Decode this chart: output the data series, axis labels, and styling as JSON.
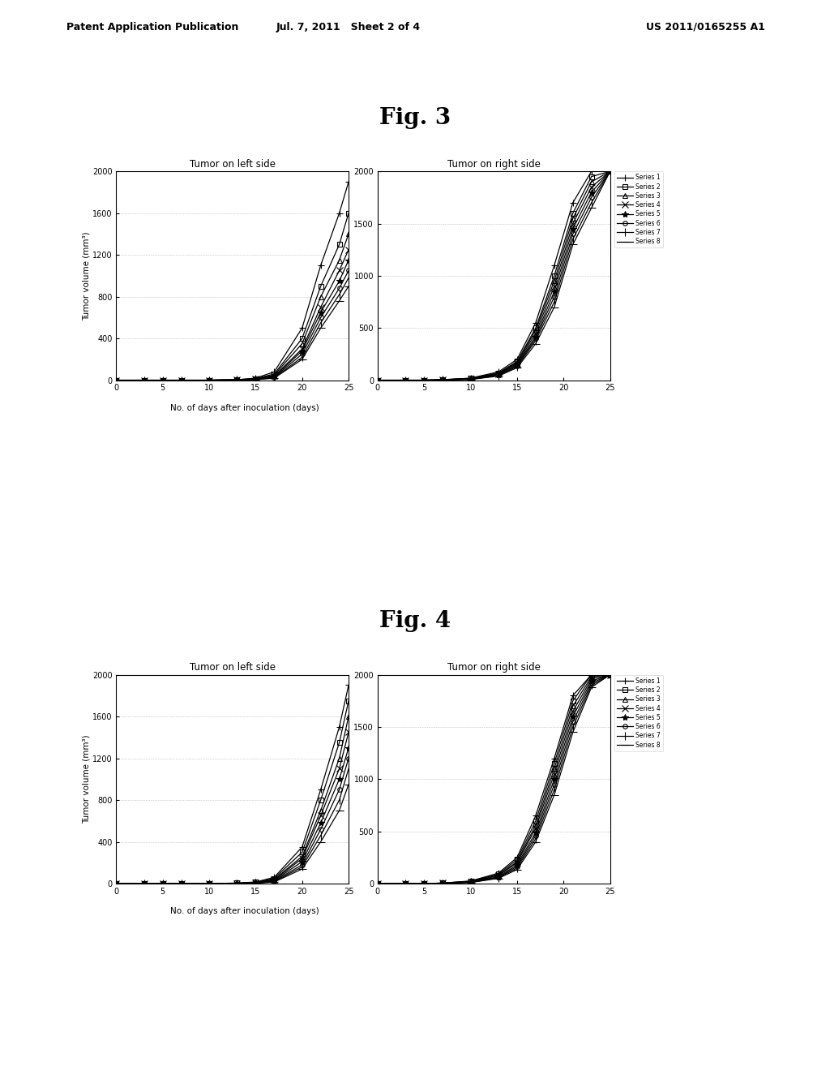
{
  "fig3_title": "Fig. 3",
  "fig4_title": "Fig. 4",
  "left_title": "Tumor on left side",
  "right_title": "Tumor on right side",
  "xlabel": "No. of days after inoculation (days)",
  "ylabel": "Tumor volume (mm³)",
  "xlim": [
    0,
    25
  ],
  "ylim_left": [
    0,
    2000
  ],
  "ylim_right": [
    0,
    2000
  ],
  "yticks_left": [
    0,
    400,
    800,
    1200,
    1600,
    2000
  ],
  "yticks_right": [
    0,
    500,
    1000,
    1500,
    2000
  ],
  "xticks": [
    0,
    5,
    10,
    15,
    20,
    25
  ],
  "series_labels": [
    "Series 1",
    "Series 2",
    "Series 3",
    "Series 4",
    "Series 5",
    "Series 6",
    "Series 7",
    "Series 8"
  ],
  "header_text_left": "Patent Application Publication",
  "header_text_mid": "Jul. 7, 2011   Sheet 2 of 4",
  "header_text_right": "US 2011/0165255 A1",
  "fig3": {
    "left": {
      "days": [
        0,
        3,
        5,
        7,
        10,
        13,
        15,
        17,
        20,
        22,
        24,
        25
      ],
      "series": [
        [
          0,
          0,
          0,
          0,
          0,
          5,
          20,
          80,
          500,
          1100,
          1600,
          1900
        ],
        [
          0,
          0,
          0,
          0,
          0,
          5,
          15,
          60,
          400,
          900,
          1300,
          1600
        ],
        [
          0,
          0,
          0,
          0,
          0,
          4,
          12,
          50,
          350,
          800,
          1150,
          1400
        ],
        [
          0,
          0,
          0,
          0,
          0,
          3,
          10,
          40,
          300,
          700,
          1050,
          1250
        ],
        [
          0,
          0,
          0,
          0,
          0,
          3,
          8,
          35,
          280,
          650,
          950,
          1150
        ],
        [
          0,
          0,
          0,
          0,
          0,
          2,
          7,
          30,
          250,
          600,
          880,
          1050
        ],
        [
          0,
          0,
          0,
          0,
          0,
          2,
          5,
          25,
          220,
          550,
          820,
          980
        ],
        [
          0,
          0,
          0,
          0,
          0,
          2,
          4,
          20,
          200,
          500,
          760,
          900
        ]
      ]
    },
    "right": {
      "days": [
        0,
        3,
        5,
        7,
        10,
        13,
        15,
        17,
        19,
        21,
        23,
        25
      ],
      "series": [
        [
          0,
          0,
          0,
          5,
          20,
          80,
          200,
          550,
          1100,
          1700,
          2000,
          2000
        ],
        [
          0,
          0,
          0,
          5,
          18,
          70,
          180,
          500,
          1000,
          1600,
          1950,
          2000
        ],
        [
          0,
          0,
          0,
          4,
          16,
          65,
          170,
          480,
          950,
          1550,
          1900,
          2000
        ],
        [
          0,
          0,
          0,
          4,
          15,
          60,
          160,
          450,
          900,
          1500,
          1850,
          2000
        ],
        [
          0,
          0,
          0,
          3,
          12,
          55,
          150,
          420,
          850,
          1450,
          1800,
          2000
        ],
        [
          0,
          0,
          0,
          3,
          10,
          50,
          140,
          400,
          800,
          1400,
          1750,
          2000
        ],
        [
          0,
          0,
          0,
          2,
          8,
          45,
          130,
          380,
          750,
          1350,
          1700,
          2000
        ],
        [
          0,
          0,
          0,
          2,
          7,
          40,
          120,
          350,
          700,
          1300,
          1650,
          2000
        ]
      ]
    }
  },
  "fig4": {
    "left": {
      "days": [
        0,
        3,
        5,
        7,
        10,
        13,
        15,
        17,
        20,
        22,
        24,
        25
      ],
      "series": [
        [
          0,
          0,
          0,
          0,
          0,
          5,
          15,
          60,
          350,
          900,
          1500,
          1900
        ],
        [
          0,
          0,
          0,
          0,
          0,
          4,
          12,
          50,
          300,
          800,
          1350,
          1750
        ],
        [
          0,
          0,
          0,
          0,
          0,
          3,
          10,
          40,
          260,
          700,
          1200,
          1600
        ],
        [
          0,
          0,
          0,
          0,
          0,
          3,
          8,
          35,
          240,
          650,
          1100,
          1450
        ],
        [
          0,
          0,
          0,
          0,
          0,
          2,
          7,
          30,
          210,
          580,
          1000,
          1300
        ],
        [
          0,
          0,
          0,
          0,
          0,
          2,
          5,
          25,
          180,
          520,
          900,
          1200
        ],
        [
          0,
          0,
          0,
          0,
          0,
          2,
          4,
          20,
          160,
          460,
          800,
          1100
        ],
        [
          0,
          0,
          0,
          0,
          0,
          1,
          3,
          15,
          140,
          400,
          700,
          950
        ]
      ]
    },
    "right": {
      "days": [
        0,
        3,
        5,
        7,
        10,
        13,
        15,
        17,
        19,
        21,
        23,
        25
      ],
      "series": [
        [
          0,
          0,
          0,
          5,
          25,
          100,
          250,
          650,
          1200,
          1800,
          2000,
          2000
        ],
        [
          0,
          0,
          0,
          5,
          22,
          90,
          230,
          600,
          1150,
          1750,
          2000,
          2000
        ],
        [
          0,
          0,
          0,
          4,
          20,
          80,
          210,
          560,
          1100,
          1700,
          1980,
          2000
        ],
        [
          0,
          0,
          0,
          4,
          18,
          75,
          200,
          530,
          1050,
          1650,
          1960,
          2000
        ],
        [
          0,
          0,
          0,
          3,
          16,
          65,
          180,
          490,
          1000,
          1600,
          1940,
          2000
        ],
        [
          0,
          0,
          0,
          3,
          14,
          60,
          165,
          460,
          950,
          1550,
          1920,
          2000
        ],
        [
          0,
          0,
          0,
          2,
          12,
          55,
          150,
          430,
          900,
          1500,
          1900,
          2000
        ],
        [
          0,
          0,
          0,
          2,
          10,
          50,
          135,
          400,
          850,
          1450,
          1880,
          2000
        ]
      ]
    }
  }
}
